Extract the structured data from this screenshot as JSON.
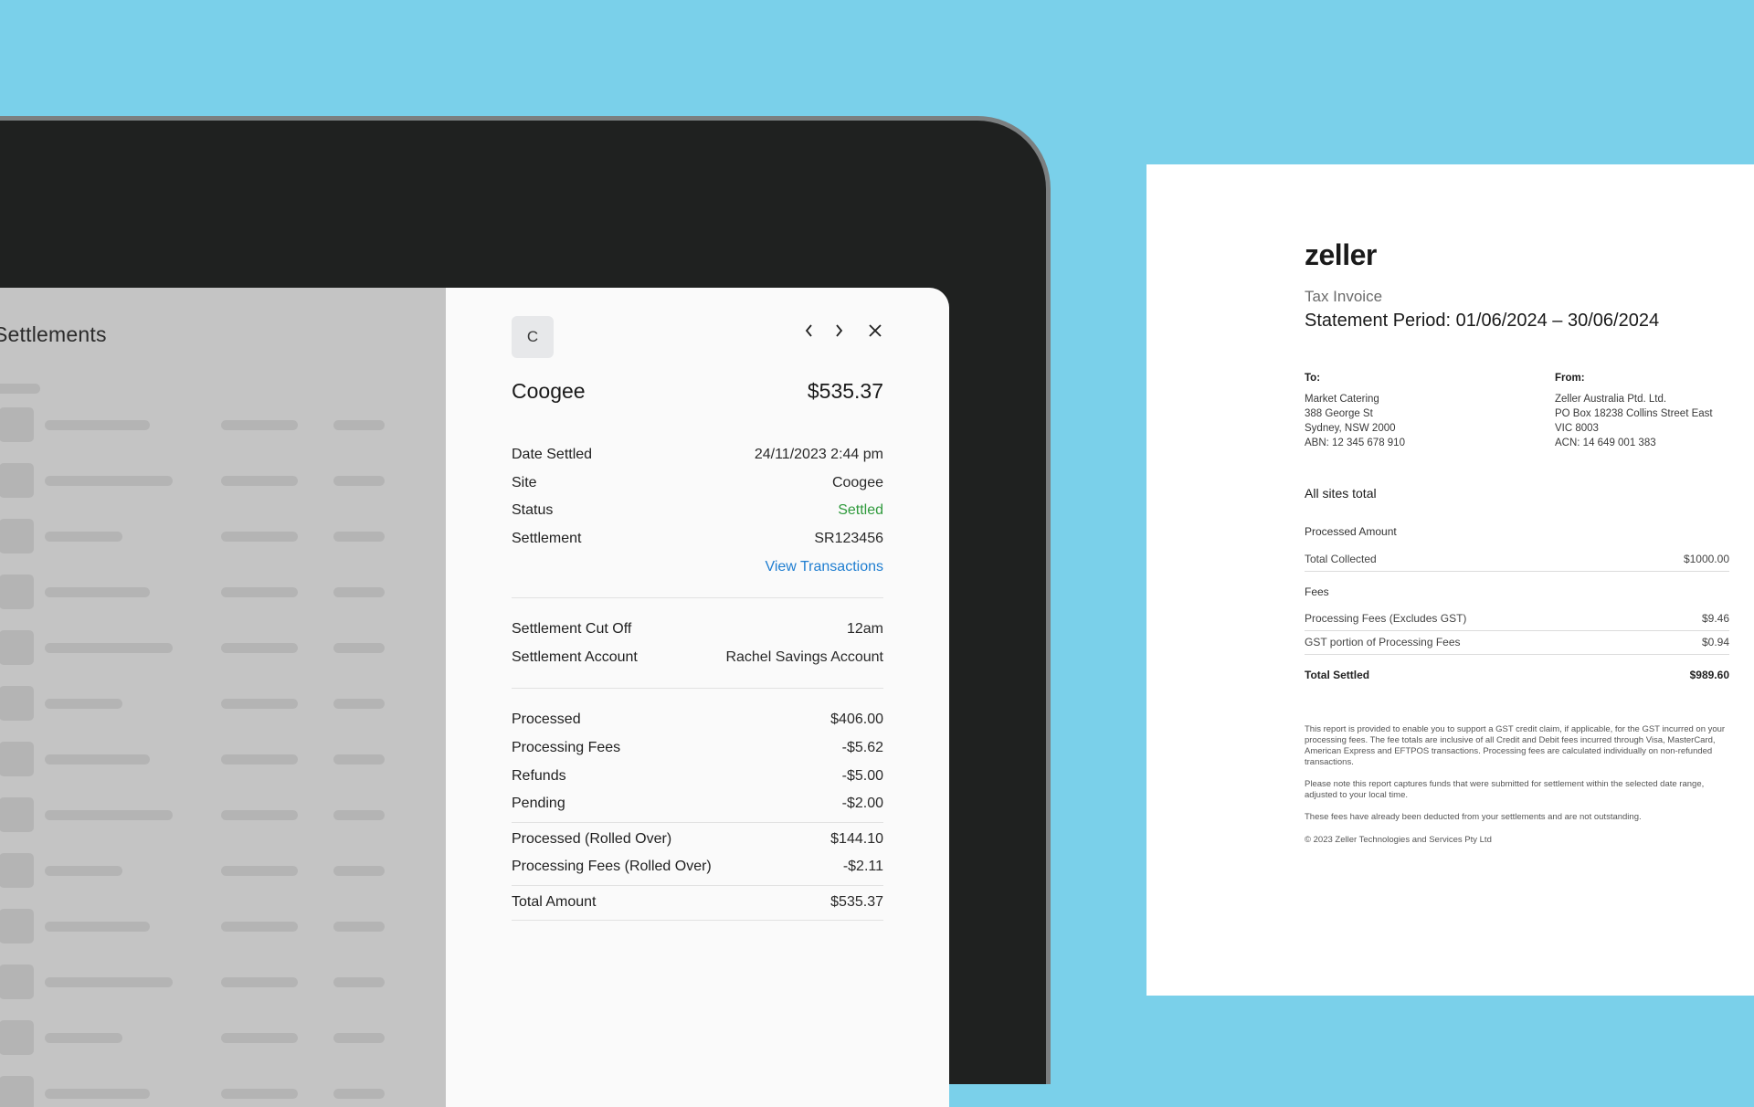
{
  "list": {
    "title": "Settlements"
  },
  "detail": {
    "avatar_letter": "C",
    "icons": [
      "chevron-left-icon",
      "chevron-right-icon",
      "close-icon"
    ],
    "name": "Coogee",
    "amount": "$535.37",
    "info_rows": [
      {
        "label": "Date Settled",
        "value": "24/11/2023 2:44 pm"
      },
      {
        "label": "Site",
        "value": "Coogee"
      },
      {
        "label": "Status",
        "value": "Settled"
      },
      {
        "label": "Settlement",
        "value": "SR123456"
      }
    ],
    "view_transactions": "View Transactions",
    "cutoff_rows": [
      {
        "label": "Settlement Cut Off",
        "value": "12am"
      },
      {
        "label": "Settlement Account",
        "value": "Rachel Savings Account"
      }
    ],
    "amount_rows": [
      {
        "label": "Processed",
        "value": "$406.00"
      },
      {
        "label": "Processing Fees",
        "value": "-$5.62"
      },
      {
        "label": "Refunds",
        "value": "-$5.00"
      },
      {
        "label": "Pending",
        "value": "-$2.00"
      }
    ],
    "rolled_rows": [
      {
        "label": "Processed (Rolled Over)",
        "value": "$144.10"
      },
      {
        "label": "Processing Fees (Rolled Over)",
        "value": "-$2.11"
      }
    ],
    "total": {
      "label": "Total Amount",
      "value": "$535.37"
    },
    "status_color": "#2f9a3c",
    "link_color": "#1f7ed1"
  },
  "invoice": {
    "logo": "zeller",
    "title": "Tax Invoice",
    "period": "Statement Period: 01/06/2024 – 30/06/2024",
    "to": {
      "heading": "To:",
      "lines": [
        "Market Catering",
        "388 George St",
        "Sydney, NSW 2000",
        "ABN: 12 345 678 910"
      ]
    },
    "from": {
      "heading": "From:",
      "lines": [
        "Zeller Australia Ptd. Ltd.",
        "PO Box 18238 Collins Street East",
        "VIC 8003",
        "ACN: 14 649 001 383"
      ]
    },
    "all_sites": "All sites total",
    "processed_heading": "Processed Amount",
    "total_collected": {
      "label": "Total Collected",
      "value": "$1000.00"
    },
    "fees_heading": "Fees",
    "fee_rows": [
      {
        "label": "Processing Fees (Excludes GST)",
        "value": "$9.46"
      },
      {
        "label": "GST portion of Processing Fees",
        "value": "$0.94"
      }
    ],
    "total_settled": {
      "label": "Total Settled",
      "value": "$989.60"
    },
    "fine_print": [
      "This report is provided to enable you to support a GST credit claim, if applicable, for the GST incurred on your processing fees. The fee totals are inclusive of all Credit and Debit fees incurred through Visa, MasterCard, American Express and EFTPOS transactions. Processing fees are calculated individually on non-refunded transactions.",
      "Please note this report captures funds that were submitted for settlement within the selected date range, adjusted to your local time.",
      "These fees have already been deducted from your settlements and are not outstanding.",
      "© 2023 Zeller Technologies and Services Pty Ltd"
    ]
  }
}
